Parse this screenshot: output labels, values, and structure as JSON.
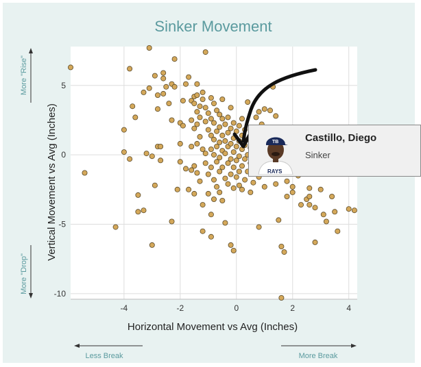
{
  "chart_data": {
    "type": "scatter",
    "title": "Sinker Movement",
    "xlabel": "Horizontal Movement vs Avg (Inches)",
    "ylabel": "Vertical Movement vs Avg (Inches)",
    "xlim": [
      -5.9,
      4.3
    ],
    "ylim": [
      -10.4,
      7.8
    ],
    "xticks": [
      -4,
      -2,
      0,
      2,
      4
    ],
    "yticks": [
      5,
      0,
      -5,
      -10
    ],
    "grid": true,
    "point_color": "#d4a85a",
    "point_stroke": "#5a4a2a",
    "x_hints": {
      "left": "Less Break",
      "right": "More Break"
    },
    "y_hints": {
      "top": "More \"Rise\"",
      "bottom": "More \"Drop\""
    },
    "points": [
      [
        -5.9,
        6.3
      ],
      [
        -5.4,
        -1.3
      ],
      [
        -4.3,
        -5.2
      ],
      [
        -4.0,
        1.8
      ],
      [
        -4.0,
        0.2
      ],
      [
        -3.8,
        6.2
      ],
      [
        -3.8,
        -0.3
      ],
      [
        -3.7,
        3.5
      ],
      [
        -3.6,
        2.7
      ],
      [
        -3.5,
        -2.9
      ],
      [
        -3.5,
        -4.1
      ],
      [
        -3.3,
        -4.0
      ],
      [
        -3.3,
        4.5
      ],
      [
        -3.2,
        0.1
      ],
      [
        -3.1,
        4.8
      ],
      [
        -3.1,
        7.7
      ],
      [
        -3.0,
        -0.1
      ],
      [
        -3.0,
        -6.5
      ],
      [
        -2.9,
        5.7
      ],
      [
        -2.9,
        -2.2
      ],
      [
        -2.8,
        4.3
      ],
      [
        -2.8,
        3.3
      ],
      [
        -2.8,
        0.6
      ],
      [
        -2.7,
        0.6
      ],
      [
        -2.7,
        -0.4
      ],
      [
        -2.6,
        5.9
      ],
      [
        -2.6,
        5.5
      ],
      [
        -2.6,
        4.4
      ],
      [
        -2.5,
        4.9
      ],
      [
        -2.4,
        3.7
      ],
      [
        -2.3,
        5.1
      ],
      [
        -2.3,
        2.5
      ],
      [
        -2.3,
        -4.8
      ],
      [
        -2.2,
        6.9
      ],
      [
        -2.2,
        4.9
      ],
      [
        -2.1,
        -2.5
      ],
      [
        -2.0,
        2.3
      ],
      [
        -2.0,
        0.8
      ],
      [
        -2.0,
        -0.5
      ],
      [
        -1.9,
        3.9
      ],
      [
        -1.9,
        2.1
      ],
      [
        -1.8,
        5.1
      ],
      [
        -1.8,
        -1.0
      ],
      [
        -1.7,
        -2.5
      ],
      [
        -1.7,
        5.6
      ],
      [
        -1.6,
        3.9
      ],
      [
        -1.6,
        2.5
      ],
      [
        -1.6,
        0.6
      ],
      [
        -1.6,
        -1.1
      ],
      [
        -1.5,
        4.2
      ],
      [
        -1.5,
        3.7
      ],
      [
        -1.5,
        1.9
      ],
      [
        -1.5,
        -0.8
      ],
      [
        -1.5,
        -2.8
      ],
      [
        -1.4,
        5.1
      ],
      [
        -1.4,
        4.3
      ],
      [
        -1.4,
        3.1
      ],
      [
        -1.4,
        2.2
      ],
      [
        -1.4,
        0.8
      ],
      [
        -1.4,
        -1.3
      ],
      [
        -1.3,
        3.5
      ],
      [
        -1.3,
        2.7
      ],
      [
        -1.3,
        1.3
      ],
      [
        -1.3,
        -1.9
      ],
      [
        -1.2,
        4.5
      ],
      [
        -1.2,
        4.0
      ],
      [
        -1.2,
        0.4
      ],
      [
        -1.2,
        -3.6
      ],
      [
        -1.2,
        -5.5
      ],
      [
        -1.1,
        7.4
      ],
      [
        -1.1,
        3.4
      ],
      [
        -1.1,
        2.4
      ],
      [
        -1.1,
        0.1
      ],
      [
        -1.1,
        -0.6
      ],
      [
        -1.0,
        3.0
      ],
      [
        -1.0,
        1.8
      ],
      [
        -1.0,
        -1.4
      ],
      [
        -1.0,
        -2.8
      ],
      [
        -0.9,
        4.1
      ],
      [
        -0.9,
        2.6
      ],
      [
        -0.9,
        1.4
      ],
      [
        -0.9,
        0.4
      ],
      [
        -0.9,
        -0.9
      ],
      [
        -0.9,
        -4.3
      ],
      [
        -0.9,
        -5.9
      ],
      [
        -0.8,
        3.7
      ],
      [
        -0.8,
        2.3
      ],
      [
        -0.8,
        1.1
      ],
      [
        -0.8,
        0.0
      ],
      [
        -0.8,
        -1.8
      ],
      [
        -0.8,
        -3.2
      ],
      [
        -0.7,
        3.2
      ],
      [
        -0.7,
        1.7
      ],
      [
        -0.7,
        0.6
      ],
      [
        -0.7,
        -0.5
      ],
      [
        -0.7,
        -2.3
      ],
      [
        -0.6,
        2.9
      ],
      [
        -0.6,
        2.0
      ],
      [
        -0.6,
        0.9
      ],
      [
        -0.6,
        -0.2
      ],
      [
        -0.6,
        -1.2
      ],
      [
        -0.6,
        -2.7
      ],
      [
        -0.5,
        4.0
      ],
      [
        -0.5,
        2.6
      ],
      [
        -0.5,
        1.4
      ],
      [
        -0.5,
        0.3
      ],
      [
        -0.5,
        -0.9
      ],
      [
        -0.5,
        -3.3
      ],
      [
        -0.4,
        2.2
      ],
      [
        -0.4,
        1.0
      ],
      [
        -0.4,
        0.1
      ],
      [
        -0.4,
        -1.7
      ],
      [
        -0.4,
        -4.9
      ],
      [
        -0.3,
        2.7
      ],
      [
        -0.3,
        1.6
      ],
      [
        -0.3,
        0.6
      ],
      [
        -0.3,
        -0.6
      ],
      [
        -0.3,
        -2.1
      ],
      [
        -0.2,
        3.4
      ],
      [
        -0.2,
        1.9
      ],
      [
        -0.2,
        0.8
      ],
      [
        -0.2,
        -0.3
      ],
      [
        -0.2,
        -1.4
      ],
      [
        -0.2,
        -6.5
      ],
      [
        -0.1,
        2.3
      ],
      [
        -0.1,
        1.2
      ],
      [
        -0.1,
        0.2
      ],
      [
        -0.1,
        -0.9
      ],
      [
        -0.1,
        -2.4
      ],
      [
        -0.1,
        -6.9
      ],
      [
        0.0,
        1.7
      ],
      [
        0.0,
        0.6
      ],
      [
        0.0,
        -0.4
      ],
      [
        0.0,
        -1.6
      ],
      [
        0.1,
        2.1
      ],
      [
        0.1,
        1.0
      ],
      [
        0.1,
        -0.1
      ],
      [
        0.1,
        -1.2
      ],
      [
        0.1,
        -2.2
      ],
      [
        0.2,
        2.6
      ],
      [
        0.2,
        1.4
      ],
      [
        0.2,
        0.4
      ],
      [
        0.2,
        -0.8
      ],
      [
        0.2,
        -2.5
      ],
      [
        0.3,
        1.8
      ],
      [
        0.3,
        0.7
      ],
      [
        0.3,
        -0.3
      ],
      [
        0.3,
        -1.8
      ],
      [
        0.4,
        1.1
      ],
      [
        0.4,
        0.0
      ],
      [
        0.4,
        -1.2
      ],
      [
        0.4,
        3.8
      ],
      [
        0.5,
        0.5
      ],
      [
        0.5,
        -0.6
      ],
      [
        0.5,
        -2.7
      ],
      [
        0.6,
        1.5
      ],
      [
        0.6,
        -0.1
      ],
      [
        0.6,
        -2.0
      ],
      [
        0.7,
        2.7
      ],
      [
        0.7,
        0.9
      ],
      [
        0.8,
        3.1
      ],
      [
        0.8,
        -1.6
      ],
      [
        0.8,
        -5.2
      ],
      [
        0.9,
        2.2
      ],
      [
        0.9,
        0.2
      ],
      [
        1.0,
        3.3
      ],
      [
        1.0,
        -2.3
      ],
      [
        1.1,
        -0.7
      ],
      [
        1.2,
        3.2
      ],
      [
        1.3,
        4.9
      ],
      [
        1.4,
        2.8
      ],
      [
        1.4,
        -2.1
      ],
      [
        1.5,
        -1.0
      ],
      [
        1.5,
        -4.7
      ],
      [
        1.6,
        -6.6
      ],
      [
        1.6,
        -10.3
      ],
      [
        1.7,
        -7.0
      ],
      [
        1.8,
        -1.9
      ],
      [
        1.8,
        -3.0
      ],
      [
        2.0,
        -2.7
      ],
      [
        2.0,
        -2.3
      ],
      [
        2.2,
        -1.5
      ],
      [
        2.3,
        -3.6
      ],
      [
        2.5,
        -3.2
      ],
      [
        2.6,
        -3.0
      ],
      [
        2.6,
        -2.4
      ],
      [
        2.6,
        -3.6
      ],
      [
        2.8,
        -3.8
      ],
      [
        2.8,
        -6.3
      ],
      [
        3.0,
        -2.5
      ],
      [
        3.1,
        -4.3
      ],
      [
        3.2,
        -4.8
      ],
      [
        3.4,
        -3.0
      ],
      [
        3.5,
        -4.1
      ],
      [
        3.6,
        -5.5
      ],
      [
        4.0,
        -3.9
      ],
      [
        4.2,
        -4.0
      ]
    ]
  },
  "tooltip": {
    "player_name": "Castillo, Diego",
    "pitch_type": "Sinker"
  },
  "annotation_arrow": {
    "color": "#111111"
  }
}
